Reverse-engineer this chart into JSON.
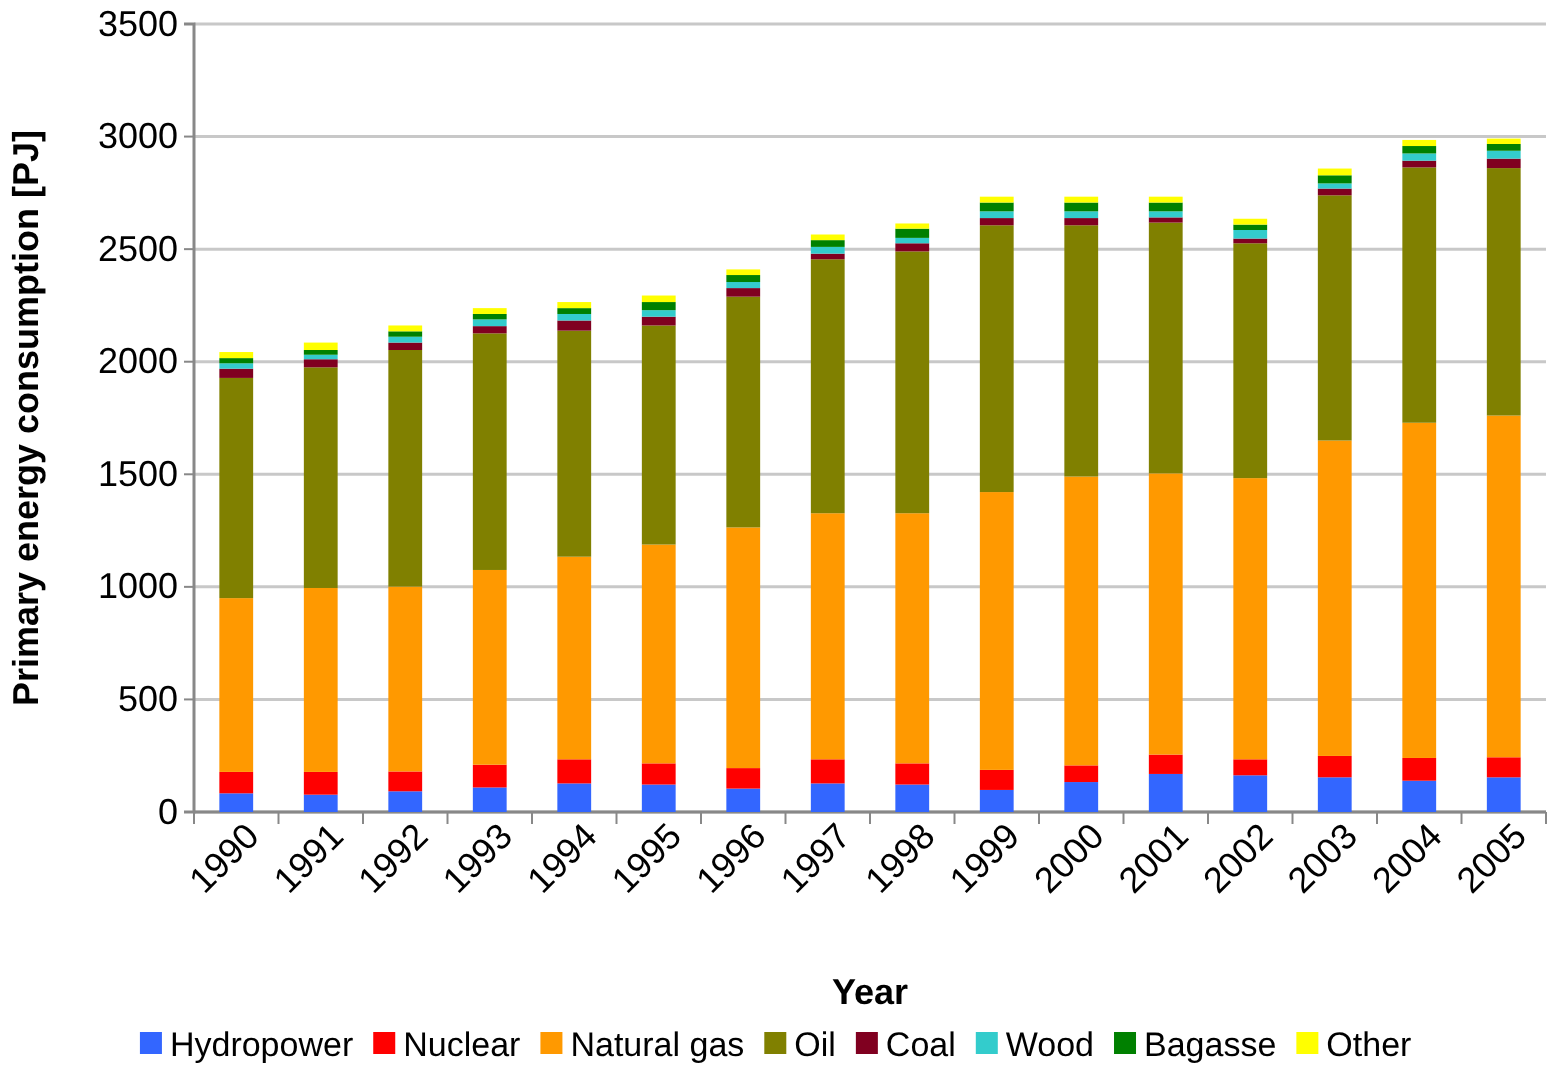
{
  "chart_data": {
    "type": "bar",
    "stacked": true,
    "xlabel": "Year",
    "ylabel": "Primary energy consumption [PJ]",
    "categories": [
      "1990",
      "1991",
      "1992",
      "1993",
      "1994",
      "1995",
      "1996",
      "1997",
      "1998",
      "1999",
      "2000",
      "2001",
      "2002",
      "2003",
      "2004",
      "2005"
    ],
    "series": [
      {
        "name": "Hydropower",
        "color": "#3366ff",
        "values": [
          83,
          77,
          92,
          109,
          127,
          122,
          104,
          127,
          122,
          98,
          133,
          169,
          163,
          154,
          139,
          154
        ]
      },
      {
        "name": "Nuclear",
        "color": "#ff0000",
        "values": [
          95,
          101,
          88,
          101,
          107,
          94,
          91,
          107,
          94,
          89,
          74,
          86,
          71,
          95,
          101,
          89
        ]
      },
      {
        "name": "Natural gas",
        "color": "#ff9900",
        "values": [
          772,
          817,
          821,
          865,
          900,
          972,
          1069,
          1093,
          1111,
          1234,
          1283,
          1249,
          1249,
          1401,
          1489,
          1518
        ]
      },
      {
        "name": "Oil",
        "color": "#808000",
        "values": [
          978,
          980,
          1051,
          1051,
          1004,
          973,
          1025,
          1128,
          1163,
          1185,
          1116,
          1114,
          1043,
          1089,
          1134,
          1099
        ]
      },
      {
        "name": "Coal",
        "color": "#800020",
        "values": [
          41,
          36,
          33,
          32,
          45,
          39,
          38,
          25,
          36,
          32,
          32,
          23,
          21,
          30,
          30,
          42
        ]
      },
      {
        "name": "Wood",
        "color": "#33cccc",
        "values": [
          24,
          20,
          26,
          30,
          29,
          29,
          27,
          30,
          24,
          30,
          30,
          27,
          38,
          23,
          32,
          35
        ]
      },
      {
        "name": "Bagasse",
        "color": "#008000",
        "values": [
          23,
          21,
          24,
          24,
          26,
          36,
          31,
          30,
          41,
          39,
          39,
          39,
          24,
          36,
          33,
          30
        ]
      },
      {
        "name": "Other",
        "color": "#ffff00",
        "values": [
          27,
          33,
          26,
          26,
          27,
          29,
          25,
          25,
          23,
          26,
          26,
          26,
          26,
          30,
          27,
          24
        ]
      }
    ],
    "ylim": [
      0,
      3500
    ],
    "yticks": [
      0,
      500,
      1000,
      1500,
      2000,
      2500,
      3000,
      3500
    ],
    "grid": "y",
    "legend": "bottom"
  }
}
